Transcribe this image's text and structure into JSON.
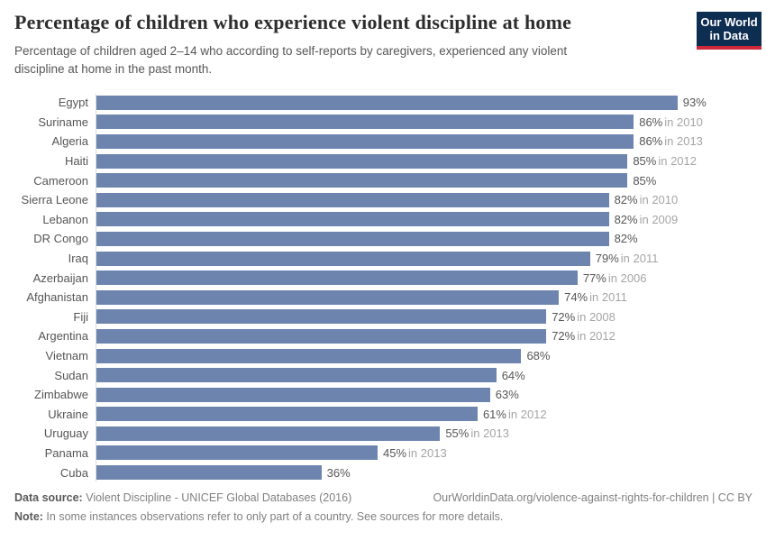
{
  "header": {
    "title": "Percentage of children who experience violent discipline at home",
    "subtitle": "Percentage of children aged 2–14 who according to self-reports by caregivers, experienced any violent discipline at home in the past month."
  },
  "logo": {
    "line1": "Our World",
    "line2": "in Data",
    "bg_color": "#0d2d51",
    "accent_color": "#d0273a"
  },
  "footer": {
    "source_label": "Data source:",
    "source_text": " Violent Discipline - UNICEF Global Databases (2016)",
    "link": "OurWorldinData.org/violence-against-rights-for-children | CC BY",
    "note_label": "Note:",
    "note_text": " In some instances observations refer to only part of a country. See sources for more details."
  },
  "chart_data": {
    "type": "bar",
    "orientation": "horizontal",
    "title": "Percentage of children who experience violent discipline at home",
    "unit": "%",
    "xlim": [
      0,
      100
    ],
    "bar_color": "#6d85ae",
    "grid": false,
    "rows": [
      {
        "country": "Egypt",
        "value": 93,
        "year_label": ""
      },
      {
        "country": "Suriname",
        "value": 86,
        "year_label": "in 2010"
      },
      {
        "country": "Algeria",
        "value": 86,
        "year_label": "in 2013"
      },
      {
        "country": "Haiti",
        "value": 85,
        "year_label": "in 2012"
      },
      {
        "country": "Cameroon",
        "value": 85,
        "year_label": ""
      },
      {
        "country": "Sierra Leone",
        "value": 82,
        "year_label": "in 2010"
      },
      {
        "country": "Lebanon",
        "value": 82,
        "year_label": "in 2009"
      },
      {
        "country": "DR Congo",
        "value": 82,
        "year_label": ""
      },
      {
        "country": "Iraq",
        "value": 79,
        "year_label": "in 2011"
      },
      {
        "country": "Azerbaijan",
        "value": 77,
        "year_label": "in 2006"
      },
      {
        "country": "Afghanistan",
        "value": 74,
        "year_label": "in 2011"
      },
      {
        "country": "Fiji",
        "value": 72,
        "year_label": "in 2008"
      },
      {
        "country": "Argentina",
        "value": 72,
        "year_label": "in 2012"
      },
      {
        "country": "Vietnam",
        "value": 68,
        "year_label": ""
      },
      {
        "country": "Sudan",
        "value": 64,
        "year_label": ""
      },
      {
        "country": "Zimbabwe",
        "value": 63,
        "year_label": ""
      },
      {
        "country": "Ukraine",
        "value": 61,
        "year_label": "in 2012"
      },
      {
        "country": "Uruguay",
        "value": 55,
        "year_label": "in 2013"
      },
      {
        "country": "Panama",
        "value": 45,
        "year_label": "in 2013"
      },
      {
        "country": "Cuba",
        "value": 36,
        "year_label": ""
      }
    ]
  }
}
